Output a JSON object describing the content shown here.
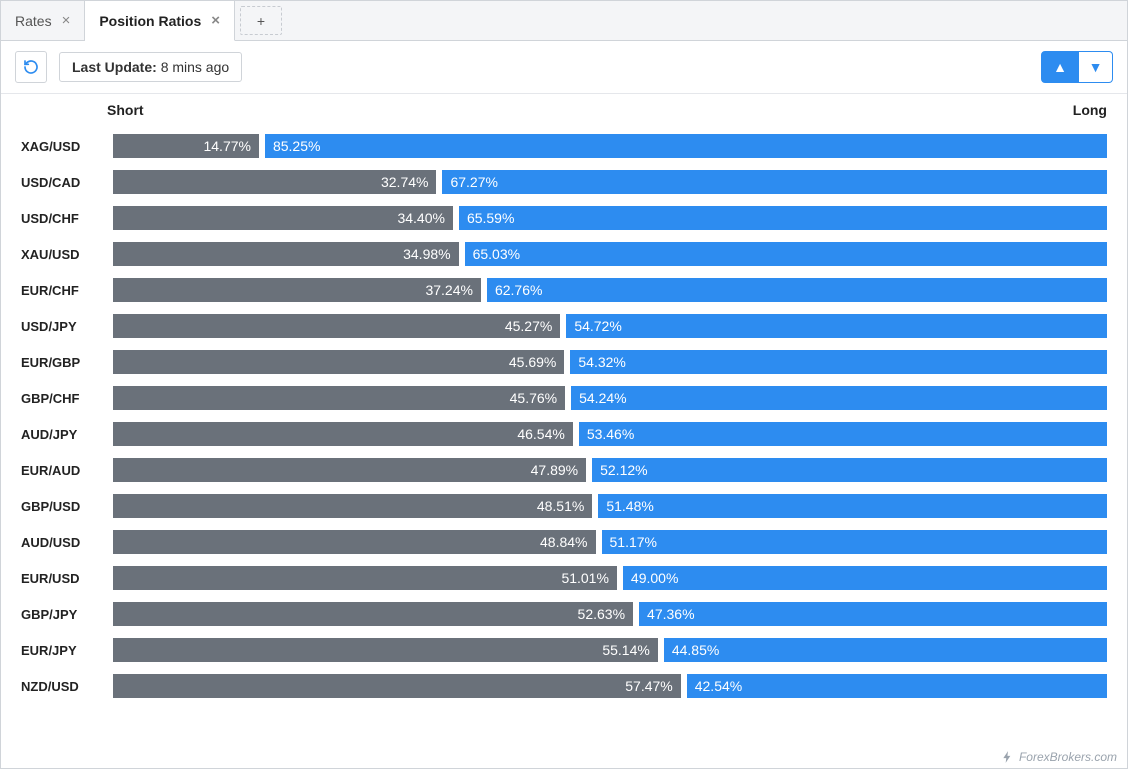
{
  "tabs": [
    {
      "label": "Rates",
      "active": false
    },
    {
      "label": "Position Ratios",
      "active": true
    }
  ],
  "addTabGlyph": "+",
  "refreshGlyph": "↻",
  "lastUpdate": {
    "label": "Last Update:",
    "value": "8 mins ago"
  },
  "sort": {
    "upGlyph": "▲",
    "downGlyph": "▼"
  },
  "headers": {
    "short": "Short",
    "long": "Long"
  },
  "colors": {
    "shortBar": "#6a717a",
    "longBar": "#2d8cf0",
    "accent": "#2d8cf0",
    "border": "#d0d4d9",
    "tabInactiveBg": "#f4f5f7",
    "text": "#222222"
  },
  "rows": [
    {
      "symbol": "XAG/USD",
      "short": 14.77,
      "long": 85.25
    },
    {
      "symbol": "USD/CAD",
      "short": 32.74,
      "long": 67.27
    },
    {
      "symbol": "USD/CHF",
      "short": 34.4,
      "long": 65.59
    },
    {
      "symbol": "XAU/USD",
      "short": 34.98,
      "long": 65.03
    },
    {
      "symbol": "EUR/CHF",
      "short": 37.24,
      "long": 62.76
    },
    {
      "symbol": "USD/JPY",
      "short": 45.27,
      "long": 54.72
    },
    {
      "symbol": "EUR/GBP",
      "short": 45.69,
      "long": 54.32
    },
    {
      "symbol": "GBP/CHF",
      "short": 45.76,
      "long": 54.24
    },
    {
      "symbol": "AUD/JPY",
      "short": 46.54,
      "long": 53.46
    },
    {
      "symbol": "EUR/AUD",
      "short": 47.89,
      "long": 52.12
    },
    {
      "symbol": "GBP/USD",
      "short": 48.51,
      "long": 51.48
    },
    {
      "symbol": "AUD/USD",
      "short": 48.84,
      "long": 51.17
    },
    {
      "symbol": "EUR/USD",
      "short": 51.01,
      "long": 49.0
    },
    {
      "symbol": "GBP/JPY",
      "short": 52.63,
      "long": 47.36
    },
    {
      "symbol": "EUR/JPY",
      "short": 55.14,
      "long": 44.85
    },
    {
      "symbol": "NZD/USD",
      "short": 57.47,
      "long": 42.54
    }
  ],
  "watermark": "ForexBrokers.com"
}
